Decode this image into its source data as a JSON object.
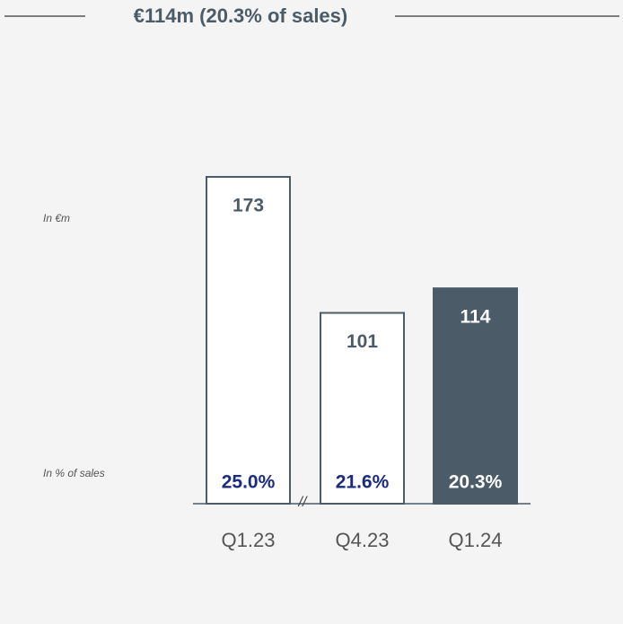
{
  "chart_data": {
    "type": "bar",
    "title": "€114m (20.3% of sales)",
    "unit_label": "In €m",
    "categories": [
      "Q1.23",
      "Q4.23",
      "Q1.24"
    ],
    "values": [
      173,
      101,
      114
    ],
    "fills": [
      "#ffffff",
      "#ffffff",
      "#4b5b67"
    ],
    "stroke": "#4b5b67",
    "sales_pct": {
      "name": "In % of sales",
      "values": [
        25.0,
        21.6,
        20.3
      ],
      "value_labels": [
        "25.0%",
        "21.6%",
        "20.3%"
      ],
      "color": "#1b2b7f"
    }
  }
}
